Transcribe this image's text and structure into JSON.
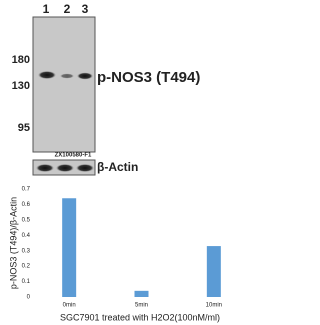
{
  "blot": {
    "lanes": [
      "1",
      "2",
      "3"
    ],
    "markers": [
      "180",
      "130",
      "95"
    ],
    "target": "p-NOS3 (T494)",
    "catalog": "ZX100580-F1",
    "loading": "β-Actin"
  },
  "chart_data": {
    "type": "bar",
    "categories": [
      "0min",
      "5min",
      "10min"
    ],
    "values": [
      0.64,
      0.04,
      0.33
    ],
    "color": "#5b9bd5",
    "ylim": [
      0,
      0.7
    ],
    "yticks": [
      0,
      0.1,
      0.2,
      0.3,
      0.4,
      0.5,
      0.6,
      0.7
    ],
    "y_label": "p-NOS3 (T494)/β-Actin",
    "x_label": "SGC7901 treated with H2O2(100nM/ml)"
  }
}
